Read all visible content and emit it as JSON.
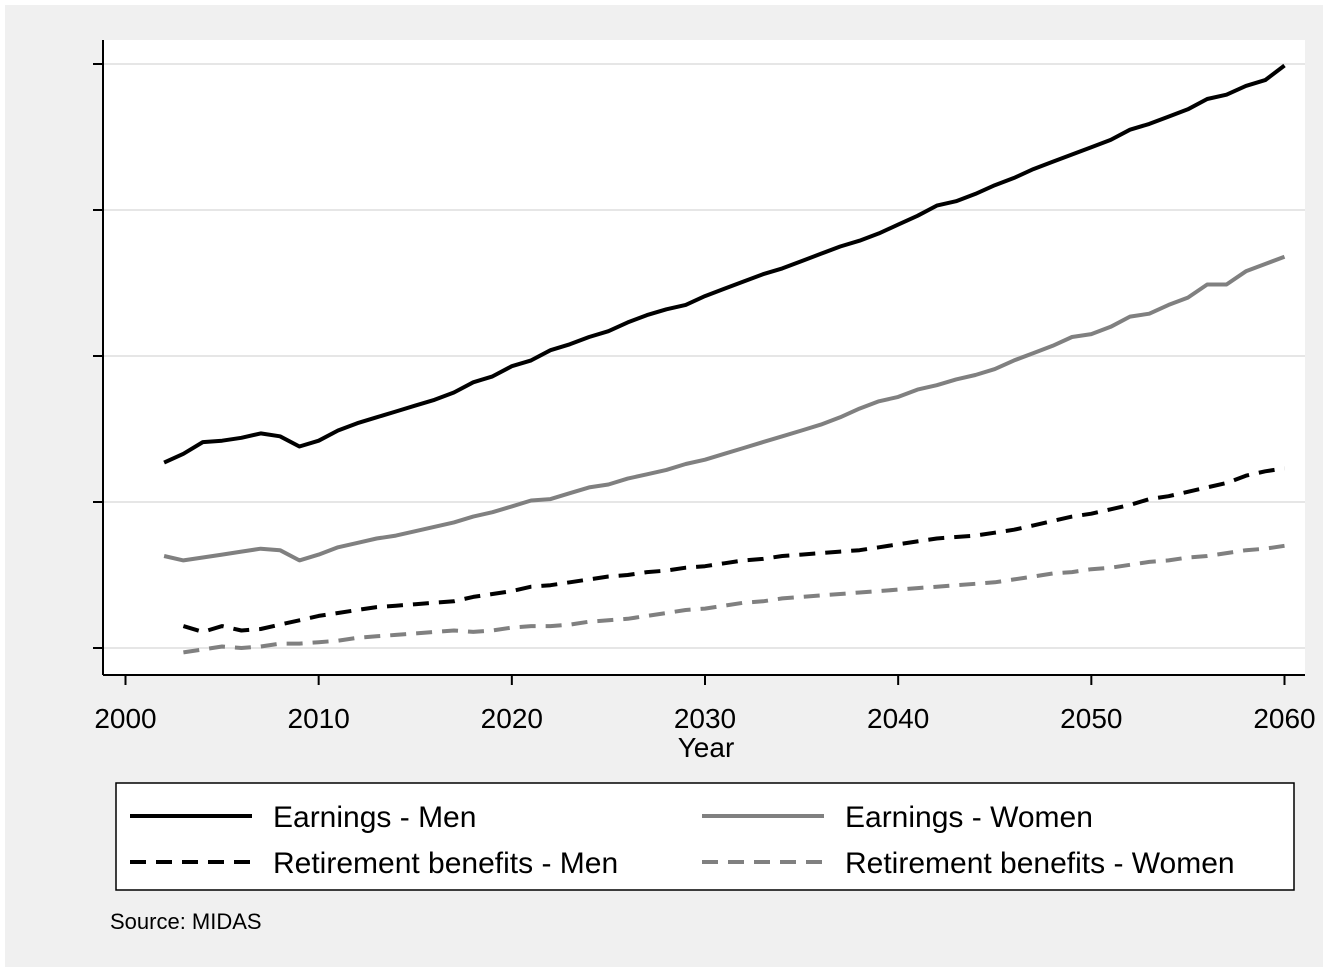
{
  "chart_data": {
    "type": "line",
    "title": "",
    "xlabel": "Year",
    "ylabel": "",
    "xlim": [
      1999,
      2061
    ],
    "ylim": [
      -0.2,
      4.0
    ],
    "x_ticks": [
      2000,
      2010,
      2020,
      2030,
      2040,
      2050,
      2060
    ],
    "x_tick_labels": [
      "2000",
      "2010",
      "2020",
      "2030",
      "2040",
      "2050",
      "2060"
    ],
    "y_ticks": [
      0,
      1,
      2,
      3,
      4
    ],
    "y_tick_labels": [
      "",
      "",
      "",
      "",
      ""
    ],
    "grid": true,
    "legend_position": "bottom",
    "note": "Source: MIDAS",
    "series": [
      {
        "name": "Earnings - Men",
        "color": "#000000",
        "dash": "solid",
        "x": [
          2002,
          2003,
          2004,
          2005,
          2006,
          2007,
          2008,
          2009,
          2010,
          2011,
          2012,
          2013,
          2014,
          2015,
          2016,
          2017,
          2018,
          2019,
          2020,
          2021,
          2022,
          2023,
          2024,
          2025,
          2026,
          2027,
          2028,
          2029,
          2030,
          2031,
          2032,
          2033,
          2034,
          2035,
          2036,
          2037,
          2038,
          2039,
          2040,
          2041,
          2042,
          2043,
          2044,
          2045,
          2046,
          2047,
          2048,
          2049,
          2050,
          2051,
          2052,
          2053,
          2054,
          2055,
          2056,
          2057,
          2058,
          2059,
          2060
        ],
        "y": [
          1.27,
          1.33,
          1.41,
          1.42,
          1.44,
          1.47,
          1.45,
          1.38,
          1.42,
          1.49,
          1.54,
          1.58,
          1.62,
          1.66,
          1.7,
          1.75,
          1.82,
          1.86,
          1.93,
          1.97,
          2.04,
          2.08,
          2.13,
          2.17,
          2.23,
          2.28,
          2.32,
          2.35,
          2.41,
          2.46,
          2.51,
          2.56,
          2.6,
          2.65,
          2.7,
          2.75,
          2.79,
          2.84,
          2.9,
          2.96,
          3.03,
          3.06,
          3.11,
          3.17,
          3.22,
          3.28,
          3.33,
          3.38,
          3.43,
          3.48,
          3.55,
          3.59,
          3.64,
          3.69,
          3.76,
          3.79,
          3.85,
          3.89,
          3.99
        ]
      },
      {
        "name": "Earnings - Women",
        "color": "#808080",
        "dash": "solid",
        "x": [
          2002,
          2003,
          2004,
          2005,
          2006,
          2007,
          2008,
          2009,
          2010,
          2011,
          2012,
          2013,
          2014,
          2015,
          2016,
          2017,
          2018,
          2019,
          2020,
          2021,
          2022,
          2023,
          2024,
          2025,
          2026,
          2027,
          2028,
          2029,
          2030,
          2031,
          2032,
          2033,
          2034,
          2035,
          2036,
          2037,
          2038,
          2039,
          2040,
          2041,
          2042,
          2043,
          2044,
          2045,
          2046,
          2047,
          2048,
          2049,
          2050,
          2051,
          2052,
          2053,
          2054,
          2055,
          2056,
          2057,
          2058,
          2059,
          2060
        ],
        "y": [
          0.63,
          0.6,
          0.62,
          0.64,
          0.66,
          0.68,
          0.67,
          0.6,
          0.64,
          0.69,
          0.72,
          0.75,
          0.77,
          0.8,
          0.83,
          0.86,
          0.9,
          0.93,
          0.97,
          1.01,
          1.02,
          1.06,
          1.1,
          1.12,
          1.16,
          1.19,
          1.22,
          1.26,
          1.29,
          1.33,
          1.37,
          1.41,
          1.45,
          1.49,
          1.53,
          1.58,
          1.64,
          1.69,
          1.72,
          1.77,
          1.8,
          1.84,
          1.87,
          1.91,
          1.97,
          2.02,
          2.07,
          2.13,
          2.15,
          2.2,
          2.27,
          2.29,
          2.35,
          2.4,
          2.49,
          2.49,
          2.58,
          2.63,
          2.68
        ]
      },
      {
        "name": "Retirement benefits - Men",
        "color": "#000000",
        "dash": "dashed",
        "x": [
          2003,
          2004,
          2005,
          2006,
          2007,
          2008,
          2009,
          2010,
          2011,
          2012,
          2013,
          2014,
          2015,
          2016,
          2017,
          2018,
          2019,
          2020,
          2021,
          2022,
          2023,
          2024,
          2025,
          2026,
          2027,
          2028,
          2029,
          2030,
          2031,
          2032,
          2033,
          2034,
          2035,
          2036,
          2037,
          2038,
          2039,
          2040,
          2041,
          2042,
          2043,
          2044,
          2045,
          2046,
          2047,
          2048,
          2049,
          2050,
          2051,
          2052,
          2053,
          2054,
          2055,
          2056,
          2057,
          2058,
          2059,
          2060
        ],
        "y": [
          0.15,
          0.11,
          0.15,
          0.12,
          0.13,
          0.16,
          0.19,
          0.22,
          0.24,
          0.26,
          0.28,
          0.29,
          0.3,
          0.31,
          0.32,
          0.35,
          0.37,
          0.39,
          0.42,
          0.43,
          0.45,
          0.47,
          0.49,
          0.5,
          0.52,
          0.53,
          0.55,
          0.56,
          0.58,
          0.6,
          0.61,
          0.63,
          0.64,
          0.65,
          0.66,
          0.67,
          0.69,
          0.71,
          0.73,
          0.75,
          0.76,
          0.77,
          0.79,
          0.81,
          0.84,
          0.87,
          0.9,
          0.92,
          0.95,
          0.98,
          1.02,
          1.04,
          1.07,
          1.1,
          1.13,
          1.18,
          1.21,
          1.23
        ]
      },
      {
        "name": "Retirement benefits - Women",
        "color": "#808080",
        "dash": "dashed",
        "x": [
          2003,
          2004,
          2005,
          2006,
          2007,
          2008,
          2009,
          2010,
          2011,
          2012,
          2013,
          2014,
          2015,
          2016,
          2017,
          2018,
          2019,
          2020,
          2021,
          2022,
          2023,
          2024,
          2025,
          2026,
          2027,
          2028,
          2029,
          2030,
          2031,
          2032,
          2033,
          2034,
          2035,
          2036,
          2037,
          2038,
          2039,
          2040,
          2041,
          2042,
          2043,
          2044,
          2045,
          2046,
          2047,
          2048,
          2049,
          2050,
          2051,
          2052,
          2053,
          2054,
          2055,
          2056,
          2057,
          2058,
          2059,
          2060
        ],
        "y": [
          -0.03,
          -0.01,
          0.01,
          0.0,
          0.01,
          0.03,
          0.03,
          0.04,
          0.05,
          0.07,
          0.08,
          0.09,
          0.1,
          0.11,
          0.12,
          0.11,
          0.12,
          0.14,
          0.15,
          0.15,
          0.16,
          0.18,
          0.19,
          0.2,
          0.22,
          0.24,
          0.26,
          0.27,
          0.29,
          0.31,
          0.32,
          0.34,
          0.35,
          0.36,
          0.37,
          0.38,
          0.39,
          0.4,
          0.41,
          0.42,
          0.43,
          0.44,
          0.45,
          0.47,
          0.49,
          0.51,
          0.52,
          0.54,
          0.55,
          0.57,
          0.59,
          0.6,
          0.62,
          0.63,
          0.65,
          0.67,
          0.68,
          0.7
        ]
      }
    ]
  }
}
